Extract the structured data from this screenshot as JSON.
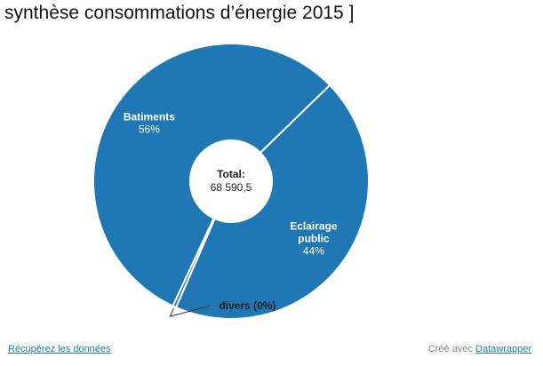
{
  "chart_data": {
    "type": "pie",
    "title": "synthèse consommations d’énergie 2015 ]",
    "slices": [
      {
        "label": "Batiments",
        "label_lines": [
          "Batiments"
        ],
        "percent_label": "56%",
        "value": 56,
        "color": "#1f77b4"
      },
      {
        "label": "Eclairage public",
        "label_lines": [
          "Eclairage",
          "public"
        ],
        "percent_label": "44%",
        "value": 44,
        "color": "#1f77b4"
      },
      {
        "label": "divers (0%)",
        "label_lines": [
          "divers (0%)"
        ],
        "percent_label": "",
        "value": 0.4,
        "color": "#1f77b4"
      }
    ],
    "center": {
      "label": "Total:",
      "value": "68 590,5"
    }
  },
  "footer": {
    "download_label": "Récupérez les données",
    "credit_prefix": "Créé avec ",
    "credit_link": "Datawrapper"
  }
}
